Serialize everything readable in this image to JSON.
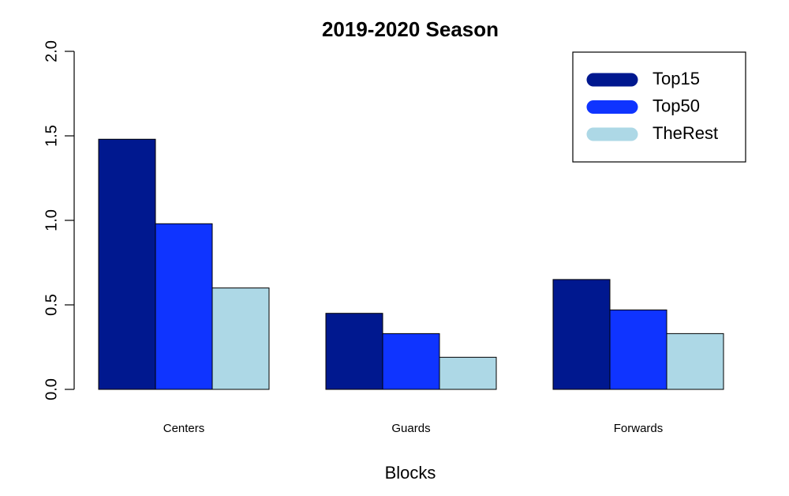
{
  "chart_data": {
    "type": "bar",
    "title": "2019-2020 Season",
    "xlabel": "Blocks",
    "ylabel": "",
    "categories": [
      "Centers",
      "Guards",
      "Forwards"
    ],
    "series": [
      {
        "name": "Top15",
        "color": "#00188f",
        "values": [
          1.48,
          0.45,
          0.65
        ]
      },
      {
        "name": "Top50",
        "color": "#0f34ff",
        "values": [
          0.98,
          0.33,
          0.47
        ]
      },
      {
        "name": "TheRest",
        "color": "#add8e6",
        "values": [
          0.6,
          0.19,
          0.33
        ]
      }
    ],
    "ylim": [
      0,
      2.0
    ],
    "yticks": [
      "0.0",
      "0.5",
      "1.0",
      "1.5",
      "2.0"
    ],
    "grid": false,
    "legend_position": "top-right"
  }
}
